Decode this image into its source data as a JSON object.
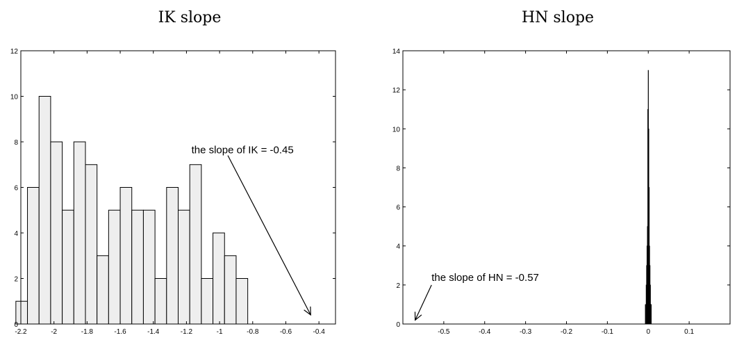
{
  "chart_data": [
    {
      "type": "bar",
      "title": "IK slope",
      "xlabel": "",
      "ylabel": "",
      "xlim": [
        -2.2,
        -0.3
      ],
      "ylim": [
        0,
        12
      ],
      "bin_width": 0.07,
      "x_ticks": [
        -2.2,
        -2,
        -1.8,
        -1.6,
        -1.4,
        -1.2,
        -1,
        -0.8,
        -0.6,
        -0.4
      ],
      "x_tick_labels": [
        "-2.2",
        "-2",
        "-1.8",
        "-1.6",
        "-1.4",
        "-1.2",
        "-1",
        "-0.8",
        "-0.6",
        "-0.4"
      ],
      "y_ticks": [
        0,
        2,
        4,
        6,
        8,
        10,
        12
      ],
      "y_tick_labels": [
        "0",
        "2",
        "4",
        "6",
        "8",
        "10",
        "12"
      ],
      "bin_left_edges": [
        -2.3,
        -2.23,
        -2.16,
        -2.09,
        -2.02,
        -1.95,
        -1.88,
        -1.81,
        -1.74,
        -1.67,
        -1.6,
        -1.53,
        -1.46,
        -1.39,
        -1.32,
        -1.25,
        -1.18,
        -1.11,
        -1.04,
        -0.97,
        -0.9,
        -0.83,
        -0.76
      ],
      "values": [
        0,
        1,
        6,
        10,
        8,
        5,
        8,
        7,
        3,
        5,
        6,
        5,
        5,
        2,
        6,
        5,
        7,
        2,
        4,
        3,
        2,
        0,
        0
      ],
      "annotation": {
        "text": "the slope of IK = -0.45",
        "text_x": -1.17,
        "text_y": 7.5,
        "arrow_from_x": -0.95,
        "arrow_from_y": 7.4,
        "arrow_to_x": -0.45,
        "arrow_to_y": 0.4
      },
      "grid": false,
      "legend": "none"
    },
    {
      "type": "bar",
      "title": "HN slope",
      "xlabel": "",
      "ylabel": "",
      "xlim": [
        -0.6,
        0.2
      ],
      "ylim": [
        0,
        14
      ],
      "x_ticks": [
        -0.5,
        -0.4,
        -0.3,
        -0.2,
        -0.1,
        0,
        0.1
      ],
      "x_tick_labels": [
        "-0.5",
        "-0.4",
        "-0.3",
        "-0.2",
        "-0.1",
        "0",
        "0.1"
      ],
      "y_ticks": [
        0,
        2,
        4,
        6,
        8,
        10,
        12,
        14
      ],
      "y_tick_labels": [
        "0",
        "2",
        "4",
        "6",
        "8",
        "10",
        "12",
        "14"
      ],
      "bin_width": 0.0008,
      "bin_centers": [
        -0.007,
        -0.006,
        -0.005,
        -0.004,
        -0.003,
        -0.002,
        -0.001,
        0,
        0.001,
        0.002,
        0.003,
        0.004,
        0.005,
        0.006,
        0.007
      ],
      "values": [
        1,
        1,
        2,
        3,
        4,
        5,
        11,
        13,
        10,
        7,
        4,
        3,
        2,
        1,
        1
      ],
      "annotation": {
        "text": "the slope of  HN = -0.57",
        "text_x": -0.53,
        "text_y": 2.2,
        "arrow_from_x": -0.53,
        "arrow_from_y": 2.0,
        "arrow_to_x": -0.57,
        "arrow_to_y": 0.2
      },
      "grid": false,
      "legend": "none"
    }
  ]
}
